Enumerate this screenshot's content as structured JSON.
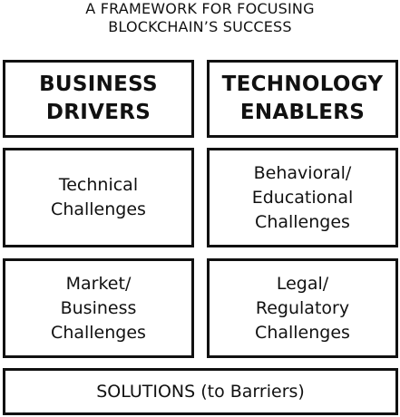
{
  "title": {
    "line1": "A FRAMEWORK FOR FOCUSING",
    "line2": "BLOCKCHAIN’S SUCCESS"
  },
  "headers": {
    "business_drivers": "BUSINESS\nDRIVERS",
    "technology_enablers": "TECHNOLOGY\nENABLERS"
  },
  "challenges": {
    "technical": "Technical\nChallenges",
    "behavioral_educational": "Behavioral/\nEducational\nChallenges",
    "market_business": "Market/\nBusiness\nChallenges",
    "legal_regulatory": "Legal/\nRegulatory\nChallenges"
  },
  "solutions": "SOLUTIONS (to Barriers)",
  "colors": {
    "ink": "#111111",
    "background": "#ffffff"
  }
}
